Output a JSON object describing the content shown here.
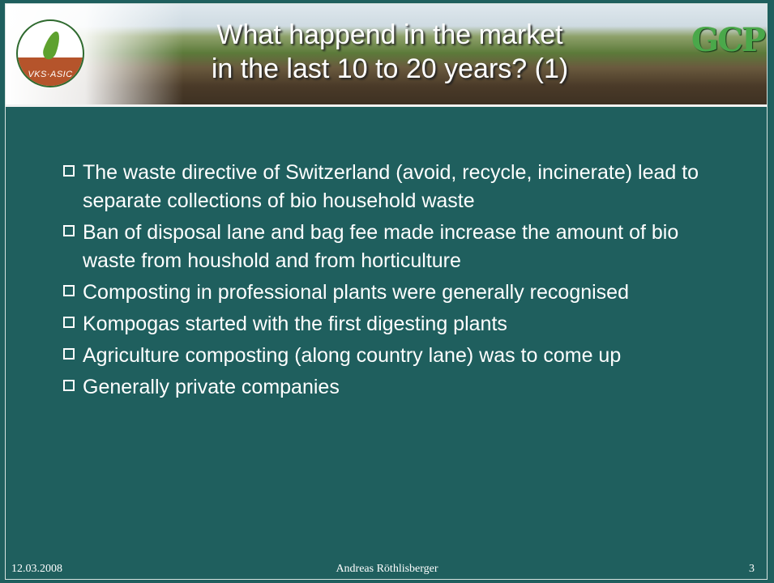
{
  "header": {
    "title_lines": [
      "What happend in the market",
      "in the last 10 to 20 years? (1)"
    ],
    "logo_left": "VKS·ASIC",
    "logo_right": "GCP"
  },
  "bullets": [
    "The waste directive of Switzerland (avoid, recycle, incinerate) lead to separate collections of bio household waste",
    "Ban of disposal lane and bag fee made increase the amount of bio waste from houshold and from horticulture",
    "Composting in professional plants were generally recognised",
    "Kompogas started with the first digesting plants",
    "Agriculture composting (along country lane) was to come up",
    "Generally private companies"
  ],
  "footer": {
    "date": "12.03.2008",
    "author": "Andreas Röthlisberger",
    "page": "3"
  }
}
